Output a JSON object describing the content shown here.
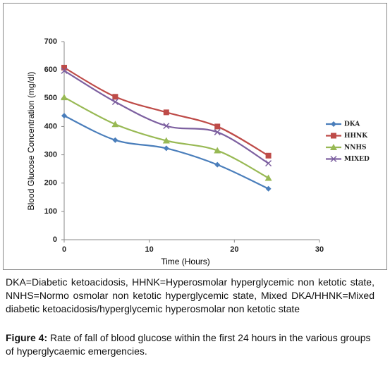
{
  "chart_data": {
    "type": "line",
    "x_label": "Time (Hours)",
    "y_label": "Blood Glucose Concentration (mg/dl)",
    "x": [
      0,
      6,
      12,
      18,
      24
    ],
    "series": [
      {
        "name": "DKA",
        "color": "#4a7ebb",
        "marker": "diamond",
        "values": [
          438,
          352,
          323,
          265,
          180
        ]
      },
      {
        "name": "HHNK",
        "color": "#be4b48",
        "marker": "square",
        "values": [
          608,
          505,
          450,
          400,
          297
        ]
      },
      {
        "name": "NNHS",
        "color": "#98b954",
        "marker": "triangle",
        "values": [
          503,
          408,
          350,
          315,
          218
        ]
      },
      {
        "name": "MIXED",
        "color": "#7d60a0",
        "marker": "x",
        "values": [
          597,
          487,
          402,
          380,
          270
        ]
      }
    ],
    "xlim": [
      0,
      30
    ],
    "xticks": [
      0,
      10,
      20,
      30
    ],
    "ylim": [
      0,
      700
    ],
    "yticks": [
      0,
      100,
      200,
      300,
      400,
      500,
      600,
      700
    ],
    "grid": false,
    "legend": "right"
  },
  "notes": "DKA=Diabetic ketoacidosis, HHNK=Hyperosmolar hyperglycemic non ketotic state, NNHS=Normo osmolar non ketotic hyperglycemic state, Mixed DKA/HHNK=Mixed diabetic ketoacidosis/hyperglycemic hyperosmolar non ketotic state",
  "caption": {
    "label": "Figure 4:",
    "text": "Rate of fall of blood glucose within the first 24 hours in the various groups of hyperglycaemic emergencies."
  }
}
